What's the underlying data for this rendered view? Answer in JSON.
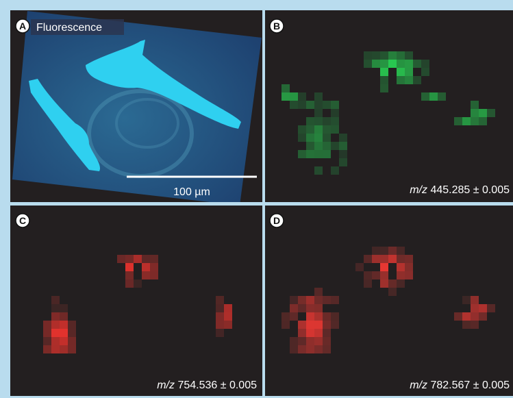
{
  "panels": [
    {
      "letter": "A",
      "title": "Fluorescence",
      "scale_bar": "100 µm"
    },
    {
      "letter": "B",
      "label": {
        "italic": "m/z",
        "text": "445.285 ± 0.005"
      }
    },
    {
      "letter": "C",
      "label": {
        "italic": "m/z",
        "text": "754.536 ± 0.005"
      }
    },
    {
      "letter": "D",
      "label": {
        "italic": "m/z",
        "text": "782.567 ± 0.005"
      }
    }
  ]
}
